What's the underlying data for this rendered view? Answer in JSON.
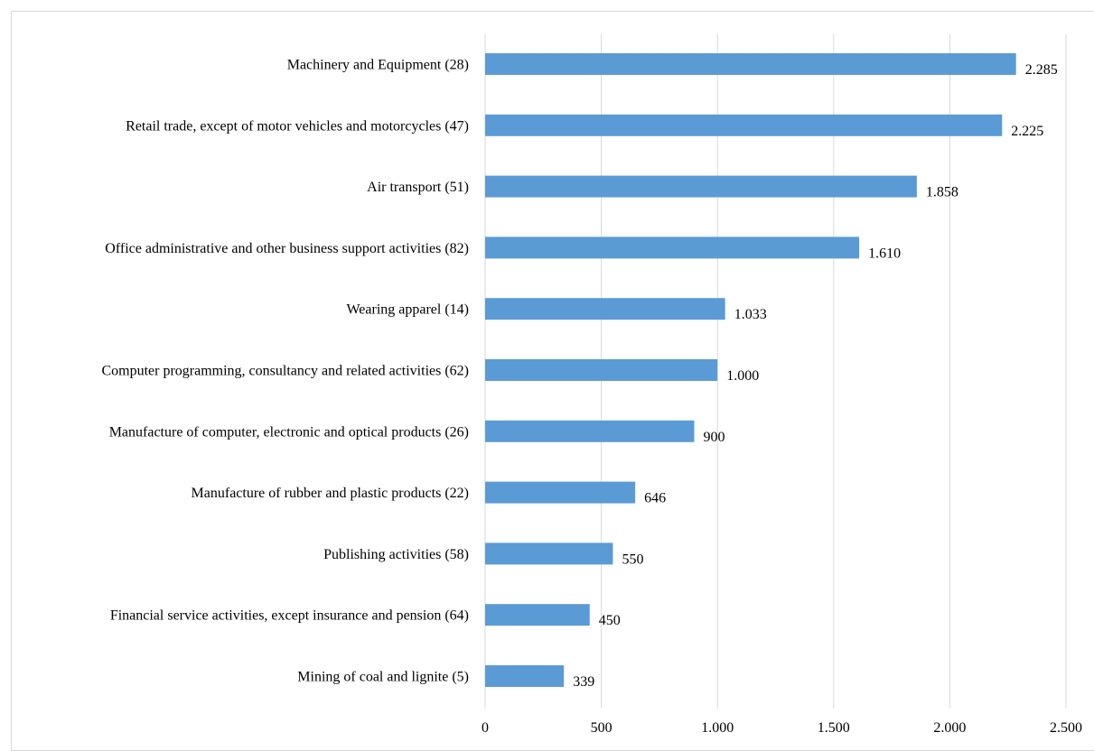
{
  "chart_data": {
    "type": "bar",
    "orientation": "horizontal",
    "categories": [
      "Machinery and Equipment (28)",
      "Retail trade, except of motor vehicles and motorcycles (47)",
      "Air transport (51)",
      "Office administrative and other business support activities (82)",
      "Wearing apparel (14)",
      "Computer programming, consultancy and related activities (62)",
      "Manufacture of computer, electronic and optical products (26)",
      "Manufacture of rubber and plastic products (22)",
      "Publishing activities (58)",
      "Financial service activities, except insurance and pension (64)",
      "Mining of coal and lignite (5)"
    ],
    "values": [
      2285,
      2225,
      1858,
      1610,
      1033,
      1000,
      900,
      646,
      550,
      450,
      339
    ],
    "value_labels": [
      "2.285",
      "2.225",
      "1.858",
      "1.610",
      "1.033",
      "1.000",
      "900",
      "646",
      "550",
      "450",
      "339"
    ],
    "xlim": [
      0,
      2500
    ],
    "xticks": [
      0,
      500,
      1000,
      1500,
      2000,
      2500
    ],
    "xtick_labels": [
      "0",
      "500",
      "1.000",
      "1.500",
      "2.000",
      "2.500"
    ],
    "grid": true,
    "legend": "none",
    "bar_color": "#5b9bd5",
    "grid_color": "#d9d9d9",
    "title": "",
    "xlabel": "",
    "ylabel": ""
  }
}
